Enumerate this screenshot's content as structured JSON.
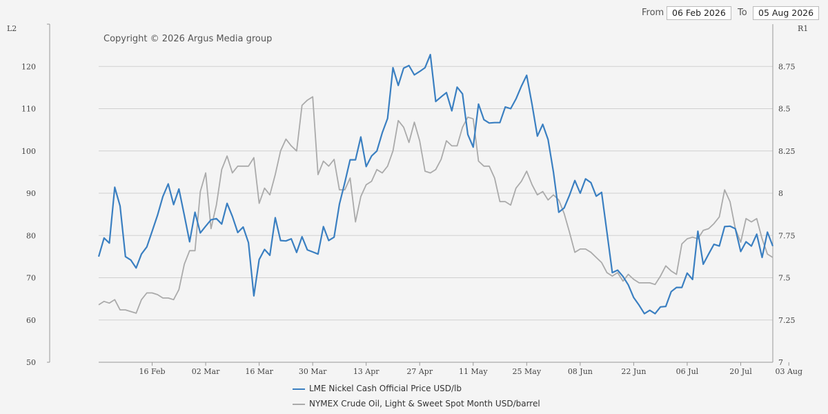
{
  "date_range": {
    "from_label": "From",
    "from_value": "06 Feb 2026",
    "to_label": "To",
    "to_value": "05 Aug 2026"
  },
  "copyright": "Copyright © 2026 Argus Media group",
  "colors": {
    "nickel": "#3a7fc1",
    "crude": "#aaaaaa",
    "grid": "#d0d0d0"
  },
  "chart_data": {
    "type": "line",
    "left_axis_label": "L2",
    "right_axis_label": "R1",
    "x_ticks": [
      "16 Feb",
      "02 Mar",
      "16 Mar",
      "30 Mar",
      "13 Apr",
      "27 Apr",
      "11 May",
      "25 May",
      "08 Jun",
      "22 Jun",
      "06 Jul",
      "20 Jul",
      "03 Aug"
    ],
    "left_axis": {
      "min": 50,
      "max": 130,
      "ticks": [
        50,
        60,
        70,
        80,
        90,
        100,
        110,
        120
      ]
    },
    "right_axis": {
      "min": 7,
      "max": 9,
      "ticks": [
        "7",
        "7.25",
        "7.5",
        "7.75",
        "8",
        "8.25",
        "8.5",
        "8.75"
      ]
    },
    "grid": true,
    "legend_position": "bottom",
    "series": [
      {
        "name": "LME Nickel Cash Official Price USD/lb",
        "axis": "left",
        "values": [
          75.0,
          79.4,
          78.2,
          91.4,
          87.0,
          75.0,
          74.2,
          72.3,
          75.6,
          77.3,
          81.0,
          84.8,
          89.2,
          92.2,
          87.3,
          91.0,
          84.8,
          78.5,
          85.5,
          80.6,
          82.2,
          83.7,
          84.0,
          82.7,
          87.6,
          84.5,
          80.7,
          82.0,
          78.3,
          65.7,
          74.3,
          76.7,
          75.3,
          84.2,
          78.8,
          78.7,
          79.2,
          76.0,
          79.7,
          76.6,
          76.1,
          75.6,
          82.1,
          78.8,
          79.6,
          87.4,
          92.5,
          97.9,
          97.9,
          103.3,
          96.3,
          98.8,
          100.0,
          104.3,
          107.7,
          119.7,
          115.5,
          119.6,
          120.2,
          118.0,
          118.8,
          119.7,
          122.8,
          111.7,
          112.8,
          113.8,
          109.5,
          115.1,
          113.5,
          103.9,
          100.9,
          111.1,
          107.4,
          106.6,
          106.7,
          106.7,
          110.4,
          110.0,
          112.3,
          115.3,
          117.9,
          111.0,
          103.5,
          106.3,
          102.7,
          95.0,
          85.5,
          86.5,
          89.5,
          93.0,
          90.0,
          93.4,
          92.5,
          89.3,
          90.2,
          80.8,
          71.2,
          71.8,
          70.3,
          68.3,
          65.3,
          63.5,
          61.5,
          62.3,
          61.5,
          63.1,
          63.2,
          66.7,
          67.7,
          67.7,
          71.1,
          69.6,
          81.0,
          73.2,
          75.6,
          77.9,
          77.5,
          82.1,
          82.2,
          81.6,
          76.2,
          78.5,
          77.5,
          80.3,
          74.8,
          80.8,
          77.5
        ]
      },
      {
        "name": "NYMEX Crude Oil, Light & Sweet Spot Month USD/barrel",
        "axis": "right",
        "values": [
          7.34,
          7.36,
          7.35,
          7.37,
          7.31,
          7.31,
          7.3,
          7.29,
          7.37,
          7.41,
          7.41,
          7.4,
          7.38,
          7.38,
          7.37,
          7.43,
          7.58,
          7.66,
          7.66,
          8.01,
          8.12,
          7.79,
          7.93,
          8.14,
          8.22,
          8.12,
          8.16,
          8.16,
          8.16,
          8.21,
          7.94,
          8.03,
          7.99,
          8.11,
          8.25,
          8.32,
          8.28,
          8.25,
          8.52,
          8.55,
          8.57,
          8.11,
          8.19,
          8.16,
          8.2,
          8.02,
          8.02,
          8.09,
          7.83,
          7.98,
          8.05,
          8.07,
          8.14,
          8.12,
          8.16,
          8.25,
          8.43,
          8.39,
          8.3,
          8.42,
          8.31,
          8.13,
          8.12,
          8.14,
          8.2,
          8.31,
          8.28,
          8.28,
          8.39,
          8.45,
          8.44,
          8.19,
          8.16,
          8.16,
          8.09,
          7.95,
          7.95,
          7.93,
          8.03,
          8.07,
          8.13,
          8.05,
          7.99,
          8.01,
          7.96,
          7.99,
          7.96,
          7.88,
          7.77,
          7.65,
          7.67,
          7.67,
          7.65,
          7.62,
          7.59,
          7.53,
          7.51,
          7.53,
          7.48,
          7.52,
          7.49,
          7.47,
          7.47,
          7.47,
          7.46,
          7.51,
          7.57,
          7.54,
          7.52,
          7.7,
          7.73,
          7.74,
          7.73,
          7.78,
          7.79,
          7.82,
          7.86,
          8.02,
          7.95,
          7.79,
          7.71,
          7.85,
          7.83,
          7.85,
          7.73,
          7.64,
          7.62
        ]
      }
    ]
  }
}
